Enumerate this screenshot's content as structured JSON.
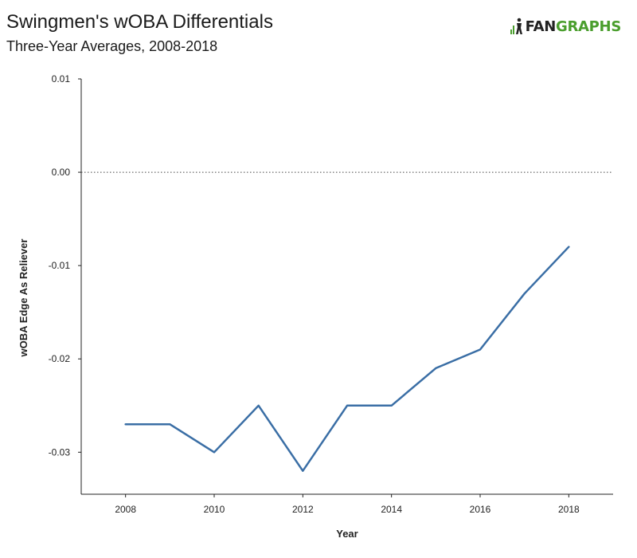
{
  "header": {
    "title": "Swingmen's wOBA Differentials",
    "subtitle": "Three-Year Averages, 2008-2018"
  },
  "logo": {
    "fan": "FAN",
    "graphs": "GRAPHS",
    "icon": "fangraphs-logo-icon",
    "brand_color": "#4a9e2d"
  },
  "chart_data": {
    "type": "line",
    "xlabel": "Year",
    "ylabel": "wOBA Edge As Reliever",
    "xlim": [
      2007.0,
      2019.0
    ],
    "ylim": [
      -0.0345,
      0.01
    ],
    "xticks": [
      2008,
      2010,
      2012,
      2014,
      2016,
      2018
    ],
    "yticks": [
      0.01,
      0.0,
      -0.01,
      -0.02,
      -0.03
    ],
    "ytick_labels": [
      "0.01",
      "0.00",
      "-0.01",
      "-0.02",
      "-0.03"
    ],
    "zero_line": "dotted",
    "grid": false,
    "series": [
      {
        "color": "#3a6ea5",
        "x": [
          2008,
          2009,
          2010,
          2011,
          2012,
          2013,
          2014,
          2015,
          2016,
          2017,
          2018
        ],
        "y": [
          -0.027,
          -0.027,
          -0.03,
          -0.025,
          -0.032,
          -0.025,
          -0.025,
          -0.021,
          -0.019,
          -0.013,
          -0.008
        ]
      }
    ]
  }
}
